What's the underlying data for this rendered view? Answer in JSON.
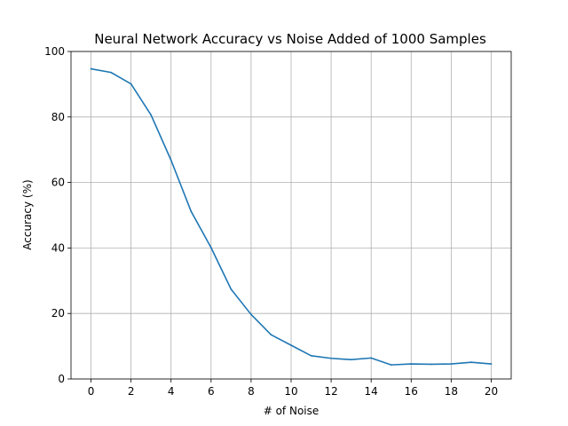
{
  "chart_data": {
    "type": "line",
    "title": "Neural Network Accuracy vs Noise Added of 1000 Samples",
    "xlabel": "# of Noise",
    "ylabel": "Accuracy (%)",
    "xlim": [
      -1,
      21
    ],
    "ylim": [
      0,
      100
    ],
    "xticks": [
      0,
      2,
      4,
      6,
      8,
      10,
      12,
      14,
      16,
      18,
      20
    ],
    "yticks": [
      0,
      20,
      40,
      60,
      80,
      100
    ],
    "grid": true,
    "legend": "none",
    "x": [
      0,
      1,
      2,
      3,
      4,
      5,
      6,
      7,
      8,
      9,
      10,
      11,
      12,
      13,
      14,
      15,
      16,
      17,
      18,
      19,
      20
    ],
    "series": [
      {
        "color": "#1f77b4",
        "values": [
          94.7,
          93.6,
          90.1,
          80.6,
          66.8,
          51.2,
          40.1,
          27.4,
          19.7,
          13.5,
          10.3,
          7.1,
          6.3,
          5.9,
          6.4,
          4.3,
          4.6,
          4.5,
          4.6,
          5.1,
          4.6
        ]
      }
    ]
  }
}
